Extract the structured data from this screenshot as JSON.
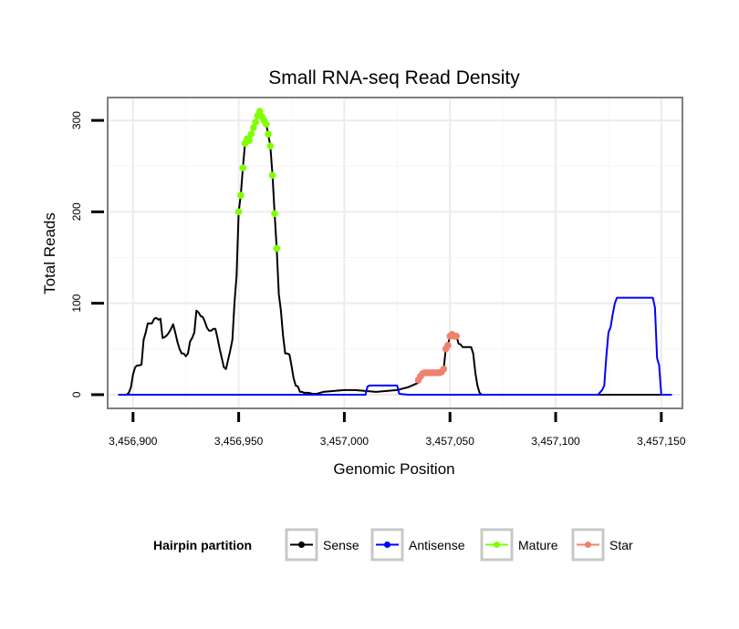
{
  "chart_data": {
    "type": "line",
    "title": "Small RNA-seq Read Density",
    "xlabel": "Genomic Position",
    "ylabel": "Total Reads",
    "xlim": [
      3456888,
      3457160
    ],
    "ylim": [
      -15,
      325
    ],
    "x_ticks": [
      3456900,
      3456950,
      3457000,
      3457050,
      3457100,
      3457150
    ],
    "x_tick_labels": [
      "3,456,900",
      "3,456,950",
      "3,457,000",
      "3,457,050",
      "3,457,100",
      "3,457,150"
    ],
    "y_ticks": [
      0,
      100,
      200,
      300
    ],
    "y_tick_labels": [
      "0",
      "100",
      "200",
      "300"
    ],
    "grid": true,
    "legend": {
      "title": "Hairpin partition",
      "position": "bottom",
      "entries": [
        "Sense",
        "Antisense",
        "Mature",
        "Star"
      ]
    },
    "series": [
      {
        "name": "Sense",
        "color": "#000000",
        "style": "line",
        "points": [
          [
            3456893,
            0
          ],
          [
            3456897,
            0
          ],
          [
            3456898,
            2
          ],
          [
            3456899,
            8
          ],
          [
            3456900,
            22
          ],
          [
            3456901,
            30
          ],
          [
            3456902,
            32
          ],
          [
            3456903,
            32
          ],
          [
            3456904,
            33
          ],
          [
            3456905,
            60
          ],
          [
            3456906,
            68
          ],
          [
            3456907,
            78
          ],
          [
            3456908,
            78
          ],
          [
            3456909,
            78
          ],
          [
            3456910,
            83
          ],
          [
            3456911,
            84
          ],
          [
            3456912,
            82
          ],
          [
            3456913,
            83
          ],
          [
            3456914,
            62
          ],
          [
            3456915,
            63
          ],
          [
            3456916,
            65
          ],
          [
            3456917,
            68
          ],
          [
            3456918,
            72
          ],
          [
            3456919,
            77
          ],
          [
            3456920,
            68
          ],
          [
            3456921,
            58
          ],
          [
            3456922,
            50
          ],
          [
            3456923,
            45
          ],
          [
            3456924,
            45
          ],
          [
            3456925,
            42
          ],
          [
            3456926,
            45
          ],
          [
            3456927,
            58
          ],
          [
            3456928,
            62
          ],
          [
            3456929,
            68
          ],
          [
            3456930,
            92
          ],
          [
            3456931,
            90
          ],
          [
            3456932,
            86
          ],
          [
            3456933,
            85
          ],
          [
            3456934,
            80
          ],
          [
            3456935,
            73
          ],
          [
            3456936,
            70
          ],
          [
            3456937,
            70
          ],
          [
            3456938,
            72
          ],
          [
            3456939,
            72
          ],
          [
            3456940,
            62
          ],
          [
            3456941,
            50
          ],
          [
            3456942,
            40
          ],
          [
            3456943,
            30
          ],
          [
            3456944,
            28
          ],
          [
            3456945,
            38
          ],
          [
            3456946,
            48
          ],
          [
            3456947,
            60
          ],
          [
            3456948,
            100
          ],
          [
            3456949,
            130
          ],
          [
            3456950,
            200
          ],
          [
            3456951,
            218
          ],
          [
            3456952,
            248
          ],
          [
            3456953,
            275
          ],
          [
            3456954,
            280
          ],
          [
            3456955,
            278
          ],
          [
            3456956,
            285
          ],
          [
            3456957,
            292
          ],
          [
            3456958,
            298
          ],
          [
            3456959,
            305
          ],
          [
            3456960,
            310
          ],
          [
            3456961,
            304
          ],
          [
            3456962,
            300
          ],
          [
            3456963,
            296
          ],
          [
            3456964,
            285
          ],
          [
            3456965,
            272
          ],
          [
            3456966,
            240
          ],
          [
            3456967,
            198
          ],
          [
            3456968,
            160
          ],
          [
            3456969,
            110
          ],
          [
            3456970,
            92
          ],
          [
            3456971,
            65
          ],
          [
            3456972,
            45
          ],
          [
            3456973,
            45
          ],
          [
            3456974,
            44
          ],
          [
            3456975,
            32
          ],
          [
            3456976,
            18
          ],
          [
            3456977,
            10
          ],
          [
            3456978,
            9
          ],
          [
            3456979,
            3
          ],
          [
            3456980,
            3
          ],
          [
            3456981,
            2
          ],
          [
            3456983,
            2
          ],
          [
            3456985,
            1
          ],
          [
            3456987,
            1
          ],
          [
            3456990,
            3
          ],
          [
            3456995,
            4
          ],
          [
            3457000,
            5
          ],
          [
            3457005,
            5
          ],
          [
            3457010,
            4
          ],
          [
            3457015,
            3
          ],
          [
            3457020,
            4
          ],
          [
            3457025,
            5
          ],
          [
            3457030,
            8
          ],
          [
            3457035,
            13
          ],
          [
            3457036,
            17
          ],
          [
            3457037,
            22
          ],
          [
            3457038,
            24
          ],
          [
            3457039,
            24
          ],
          [
            3457040,
            24
          ],
          [
            3457041,
            24
          ],
          [
            3457042,
            24
          ],
          [
            3457043,
            24
          ],
          [
            3457044,
            24
          ],
          [
            3457045,
            24
          ],
          [
            3457046,
            25
          ],
          [
            3457047,
            28
          ],
          [
            3457048,
            50
          ],
          [
            3457049,
            54
          ],
          [
            3457050,
            64
          ],
          [
            3457051,
            66
          ],
          [
            3457052,
            65
          ],
          [
            3457053,
            65
          ],
          [
            3457054,
            56
          ],
          [
            3457055,
            55
          ],
          [
            3457056,
            52
          ],
          [
            3457058,
            52
          ],
          [
            3457060,
            52
          ],
          [
            3457061,
            45
          ],
          [
            3457062,
            24
          ],
          [
            3457063,
            10
          ],
          [
            3457064,
            2
          ],
          [
            3457065,
            0
          ],
          [
            3457066,
            0
          ],
          [
            3457080,
            0
          ],
          [
            3457110,
            0
          ],
          [
            3457155,
            0
          ]
        ]
      },
      {
        "name": "Antisense",
        "color": "#0000ff",
        "style": "line",
        "points": [
          [
            3456893,
            0
          ],
          [
            3456980,
            0
          ],
          [
            3457010,
            0
          ],
          [
            3457011,
            9
          ],
          [
            3457012,
            10
          ],
          [
            3457015,
            10
          ],
          [
            3457020,
            10
          ],
          [
            3457025,
            10
          ],
          [
            3457026,
            1
          ],
          [
            3457030,
            0
          ],
          [
            3457065,
            0
          ],
          [
            3457100,
            0
          ],
          [
            3457120,
            0
          ],
          [
            3457122,
            5
          ],
          [
            3457123,
            10
          ],
          [
            3457124,
            42
          ],
          [
            3457125,
            68
          ],
          [
            3457126,
            74
          ],
          [
            3457127,
            88
          ],
          [
            3457128,
            100
          ],
          [
            3457129,
            106
          ],
          [
            3457130,
            106
          ],
          [
            3457135,
            106
          ],
          [
            3457140,
            106
          ],
          [
            3457145,
            106
          ],
          [
            3457146,
            106
          ],
          [
            3457147,
            95
          ],
          [
            3457148,
            40
          ],
          [
            3457149,
            32
          ],
          [
            3457150,
            0
          ],
          [
            3457155,
            0
          ]
        ]
      },
      {
        "name": "Mature",
        "color": "#7fff00",
        "style": "points",
        "points": [
          [
            3456950,
            200
          ],
          [
            3456951,
            218
          ],
          [
            3456952,
            248
          ],
          [
            3456953,
            275
          ],
          [
            3456954,
            280
          ],
          [
            3456955,
            278
          ],
          [
            3456956,
            285
          ],
          [
            3456957,
            292
          ],
          [
            3456958,
            298
          ],
          [
            3456959,
            305
          ],
          [
            3456960,
            310
          ],
          [
            3456961,
            304
          ],
          [
            3456962,
            300
          ],
          [
            3456963,
            296
          ],
          [
            3456964,
            285
          ],
          [
            3456965,
            272
          ],
          [
            3456966,
            240
          ],
          [
            3456967,
            198
          ],
          [
            3456968,
            160
          ]
        ]
      },
      {
        "name": "Star",
        "color": "#f08070",
        "style": "points",
        "points": [
          [
            3457035,
            16
          ],
          [
            3457036,
            20
          ],
          [
            3457037,
            23
          ],
          [
            3457038,
            24
          ],
          [
            3457039,
            24
          ],
          [
            3457040,
            24
          ],
          [
            3457041,
            24
          ],
          [
            3457042,
            24
          ],
          [
            3457043,
            24
          ],
          [
            3457044,
            24
          ],
          [
            3457045,
            24
          ],
          [
            3457046,
            25
          ],
          [
            3457047,
            28
          ],
          [
            3457048,
            50
          ],
          [
            3457049,
            54
          ],
          [
            3457050,
            64
          ],
          [
            3457051,
            66
          ],
          [
            3457052,
            64
          ],
          [
            3457053,
            64
          ]
        ]
      }
    ]
  }
}
